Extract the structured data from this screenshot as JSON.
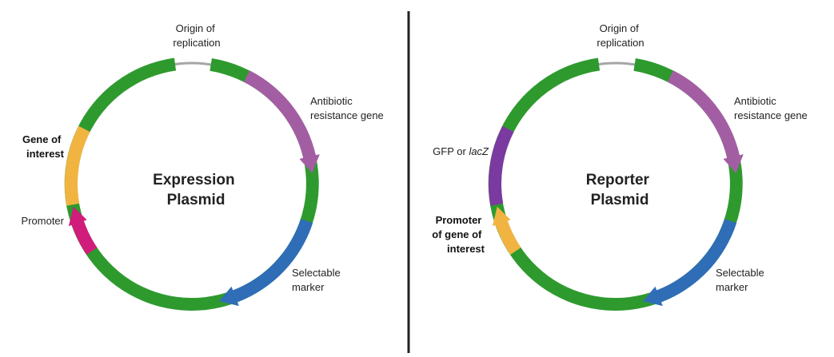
{
  "colors": {
    "backbone": "#a6a6a6",
    "origin": "#2e9a2e",
    "antibiotic": "#a35ea3",
    "selectable": "#2f6db7",
    "gene_of_interest": "#f2b441",
    "promoter": "#d01d7b",
    "reporter_gene": "#7b3aa0",
    "promoter_goi": "#f2b441",
    "divider": "#222222"
  },
  "expression": {
    "title_line1": "Expression",
    "title_line2": "Plasmid",
    "origin_line1": "Origin of",
    "origin_line2": "replication",
    "antibiotic_line1": "Antibiotic",
    "antibiotic_line2": "resistance gene",
    "selectable_line1": "Selectable",
    "selectable_line2": "marker",
    "goi_line1": "Gene of",
    "goi_line2": "interest",
    "promoter": "Promoter"
  },
  "reporter": {
    "title_line1": "Reporter",
    "title_line2": "Plasmid",
    "origin_line1": "Origin of",
    "origin_line2": "replication",
    "antibiotic_line1": "Antibiotic",
    "antibiotic_line2": "resistance gene",
    "selectable_line1": "Selectable",
    "selectable_line2": "marker",
    "reporter_prefix": "GFP or ",
    "reporter_italic": "lacZ",
    "promoter_line1": "Promoter",
    "promoter_line2": "of gene of",
    "promoter_line3": "interest"
  }
}
